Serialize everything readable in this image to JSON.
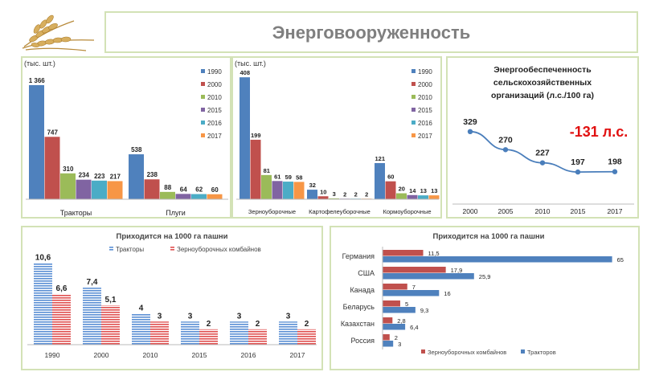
{
  "page": {
    "title": "Энерговооруженность"
  },
  "colors": {
    "panel_border": "#d3e2b6",
    "wheat": "#c8a050",
    "red_text": "#e11111"
  },
  "legend_years": [
    {
      "label": "1990",
      "color": "#4f81bd"
    },
    {
      "label": "2000",
      "color": "#c0504d"
    },
    {
      "label": "2010",
      "color": "#9bbb59"
    },
    {
      "label": "2015",
      "color": "#8064a2"
    },
    {
      "label": "2016",
      "color": "#4bacc6"
    },
    {
      "label": "2017",
      "color": "#f79646"
    }
  ],
  "power_note": "-131 л.с.",
  "chart_data": [
    {
      "id": "machinery",
      "type": "bar",
      "unit_label": "(тыс. шт.)",
      "categories": [
        "Тракторы",
        "Плуги"
      ],
      "series": [
        {
          "name": "1990",
          "values": [
            1366,
            538
          ]
        },
        {
          "name": "2000",
          "values": [
            747,
            238
          ]
        },
        {
          "name": "2010",
          "values": [
            310,
            88
          ]
        },
        {
          "name": "2015",
          "values": [
            234,
            64
          ]
        },
        {
          "name": "2016",
          "values": [
            223,
            62
          ]
        },
        {
          "name": "2017",
          "values": [
            217,
            60
          ]
        }
      ],
      "value_labels": [
        [
          "1 366",
          "538"
        ],
        [
          "747",
          "238"
        ],
        [
          "310",
          "88"
        ],
        [
          "234",
          "64"
        ],
        [
          "223",
          "62"
        ],
        [
          "217",
          "60"
        ]
      ],
      "ylim": [
        0,
        1500
      ]
    },
    {
      "id": "harvesters",
      "type": "bar",
      "unit_label": "(тыс. шт.)",
      "categories": [
        "Зерноуборочные",
        "Картофелеуборочные",
        "Кормоуборочные"
      ],
      "series": [
        {
          "name": "1990",
          "values": [
            408,
            32,
            121
          ]
        },
        {
          "name": "2000",
          "values": [
            199,
            10,
            60
          ]
        },
        {
          "name": "2010",
          "values": [
            81,
            3,
            20
          ]
        },
        {
          "name": "2015",
          "values": [
            61,
            2,
            14
          ]
        },
        {
          "name": "2016",
          "values": [
            59,
            2,
            13
          ]
        },
        {
          "name": "2017",
          "values": [
            58,
            2,
            13
          ]
        }
      ],
      "ylim": [
        0,
        430
      ]
    },
    {
      "id": "power_supply",
      "type": "line",
      "title": "Энергообеспеченность сельскохозяйственных организаций (л.с./100 га)",
      "title_lines": [
        "Энергообеспеченность",
        "сельскохозяйственных",
        "организаций (л.с./100 га)"
      ],
      "x": [
        "2000",
        "2005",
        "2010",
        "2015",
        "2017"
      ],
      "y": [
        329,
        270,
        227,
        197,
        198
      ],
      "ylim": [
        150,
        360
      ]
    },
    {
      "id": "per_1000ha_years",
      "type": "bar",
      "title": "Приходится на 1000 га пашни",
      "categories": [
        "1990",
        "2000",
        "2010",
        "2015",
        "2016",
        "2017"
      ],
      "series": [
        {
          "name": "Тракторы",
          "values": [
            10.6,
            7.4,
            4,
            3,
            3,
            3
          ],
          "labels": [
            "10,6",
            "7,4",
            "4",
            "3",
            "3",
            "3"
          ]
        },
        {
          "name": "Зерноуборочных комбайнов",
          "values": [
            6.6,
            5.1,
            3,
            2,
            2,
            2
          ],
          "labels": [
            "6,6",
            "5,1",
            "3",
            "2",
            "2",
            "2"
          ]
        }
      ],
      "ylim": [
        0,
        12
      ]
    },
    {
      "id": "per_1000ha_countries",
      "type": "bar",
      "orientation": "horizontal",
      "title": "Приходится на 1000 га пашни",
      "categories": [
        "Германия",
        "США",
        "Канада",
        "Беларусь",
        "Казахстан",
        "Россия"
      ],
      "series": [
        {
          "name": "Зерноуборочных комбайнов",
          "values": [
            11.5,
            17.9,
            7,
            5,
            2.8,
            2
          ],
          "labels": [
            "11,5",
            "17,9",
            "7",
            "5",
            "2,8",
            "2"
          ]
        },
        {
          "name": "Тракторов",
          "values": [
            65,
            25.9,
            16,
            9.3,
            6.4,
            3
          ],
          "labels": [
            "65",
            "25,9",
            "16",
            "9,3",
            "6,4",
            "3"
          ]
        }
      ],
      "xlim": [
        0,
        66
      ]
    }
  ]
}
